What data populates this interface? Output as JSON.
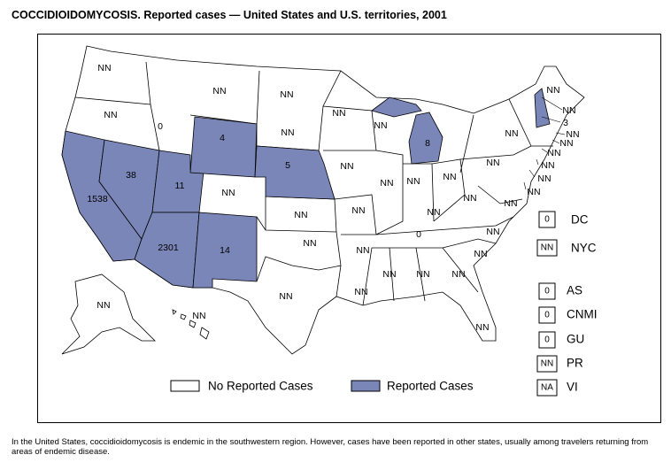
{
  "title": "COCCIDIOIDOMYCOSIS. Reported cases — United States and U.S. territories, 2001",
  "colors": {
    "reported": "#7b86b8",
    "none": "#ffffff"
  },
  "states": {
    "WA": "NN",
    "OR": "NN",
    "ID": "0",
    "MT": "NN",
    "WY": "4",
    "ND": "NN",
    "SD": "NN",
    "MN": "NN",
    "WI": "NN",
    "MI": "8",
    "NE": "5",
    "IA": "NN",
    "IL": "NN",
    "IN": "NN",
    "OH": "NN",
    "PA": "NN",
    "NY": "NN",
    "ME": "NN",
    "VT": "NN",
    "NH": "3",
    "MA": "NN",
    "RI": "NN",
    "CT": "NN",
    "NJ": "NN",
    "DE": "NN",
    "MD": "NN",
    "WV": "NN",
    "VA": "NN",
    "KY": "NN",
    "NC": "NN",
    "SC": "NN",
    "GA": "NN",
    "FL": "NN",
    "AL": "NN",
    "MS": "NN",
    "LA": "NN",
    "TN": "0",
    "AR": "NN",
    "MO": "NN",
    "KS": "NN",
    "OK": "NN",
    "TX": "NN",
    "CO": "NN",
    "UT": "11",
    "NV": "38",
    "CA": "1538",
    "AZ": "2301",
    "NM": "14",
    "AK": "NN",
    "HI": "NN"
  },
  "territories": [
    {
      "name": "DC",
      "value": "0"
    },
    {
      "name": "NYC",
      "value": "NN"
    },
    {
      "name": "AS",
      "value": "0"
    },
    {
      "name": "CNMI",
      "value": "0"
    },
    {
      "name": "GU",
      "value": "0"
    },
    {
      "name": "PR",
      "value": "NN"
    },
    {
      "name": "VI",
      "value": "NA"
    }
  ],
  "legend": {
    "none": "No Reported Cases",
    "reported": "Reported Cases"
  },
  "footer": "In the United States, coccidioidomycosis is endemic in the southwestern region. However, cases have been reported in other states, usually among travelers returning from areas of endemic disease."
}
